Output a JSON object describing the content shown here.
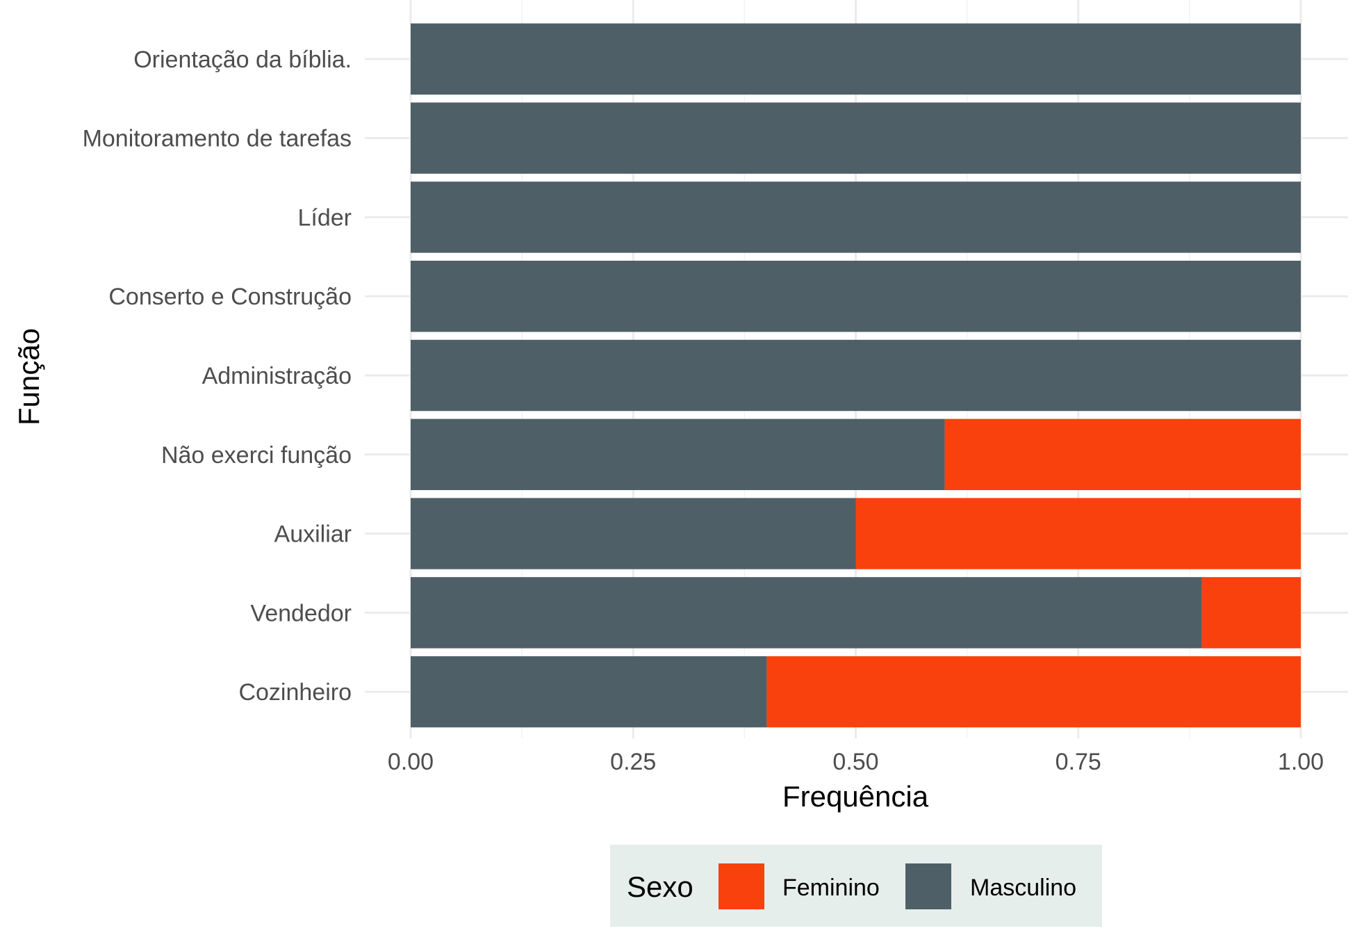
{
  "chart_data": {
    "type": "bar",
    "orientation": "horizontal",
    "stacked": true,
    "categories": [
      "Orientação da bíblia.",
      "Monitoramento de tarefas ",
      "Líder",
      "Conserto e Construção",
      "Administração",
      "Não exerci função",
      "Auxiliar",
      "Vendedor",
      "Cozinheiro"
    ],
    "series": [
      {
        "name": "Masculino",
        "color": "#4f5f68",
        "values": [
          1.0,
          1.0,
          1.0,
          1.0,
          1.0,
          0.6,
          0.5,
          0.889,
          0.4
        ]
      },
      {
        "name": "Feminino",
        "color": "#f8410c",
        "values": [
          0.0,
          0.0,
          0.0,
          0.0,
          0.0,
          0.4,
          0.5,
          0.111,
          0.6
        ]
      }
    ],
    "xlabel": "Frequência",
    "ylabel": "Função",
    "xlim": [
      0,
      1
    ],
    "xticks": [
      "0.00",
      "0.25",
      "0.50",
      "0.75",
      "1.00"
    ],
    "grid": true,
    "legend": {
      "title": "Sexo",
      "position": "bottom",
      "background": "#e6eeeb",
      "entries": [
        "Feminino",
        "Masculino"
      ]
    }
  }
}
